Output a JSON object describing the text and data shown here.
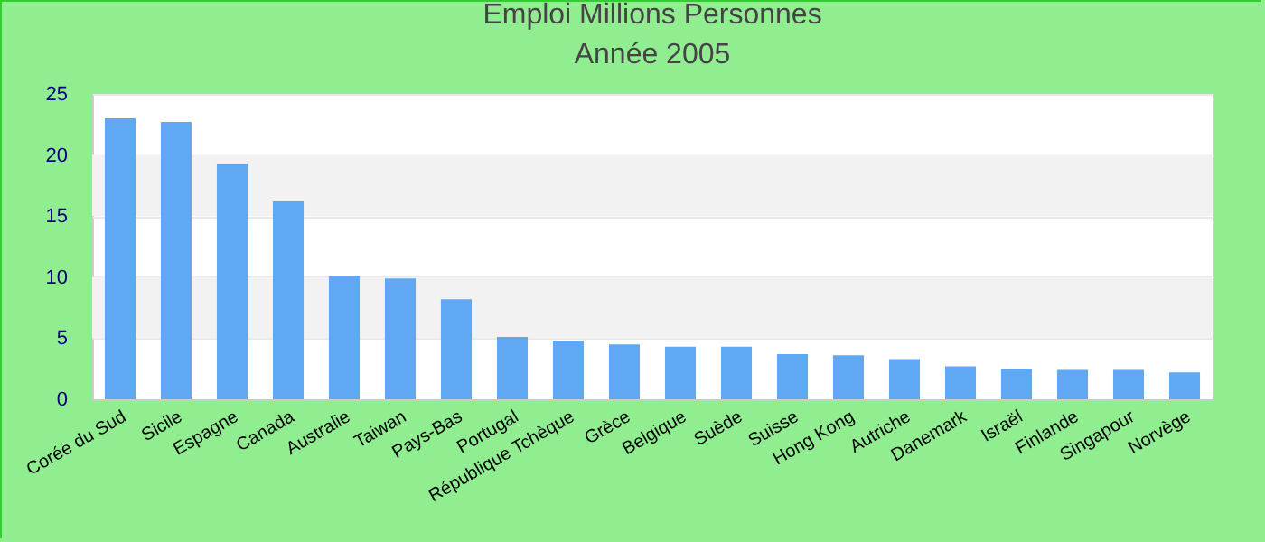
{
  "chart_data": {
    "type": "bar",
    "title": "Emploi Millions Personnes",
    "subtitle": "Année 2005",
    "categories": [
      "Corée du Sud",
      "Sicile",
      "Espagne",
      "Canada",
      "Australie",
      "Taiwan",
      "Pays-Bas",
      "Portugal",
      "République Tchèque",
      "Grèce",
      "Belgique",
      "Suède",
      "Suisse",
      "Hong Kong",
      "Autriche",
      "Danemark",
      "Israël",
      "Finlande",
      "Singapour",
      "Norvège"
    ],
    "values": [
      23.0,
      22.7,
      19.3,
      16.2,
      10.1,
      9.9,
      8.2,
      5.1,
      4.8,
      4.5,
      4.3,
      4.3,
      3.7,
      3.6,
      3.3,
      2.7,
      2.5,
      2.4,
      2.4,
      2.2
    ],
    "color": "#60a8f4",
    "ylim": [
      0,
      25
    ],
    "yticks": [
      0,
      5,
      10,
      15,
      20,
      25
    ],
    "grid": "y"
  }
}
